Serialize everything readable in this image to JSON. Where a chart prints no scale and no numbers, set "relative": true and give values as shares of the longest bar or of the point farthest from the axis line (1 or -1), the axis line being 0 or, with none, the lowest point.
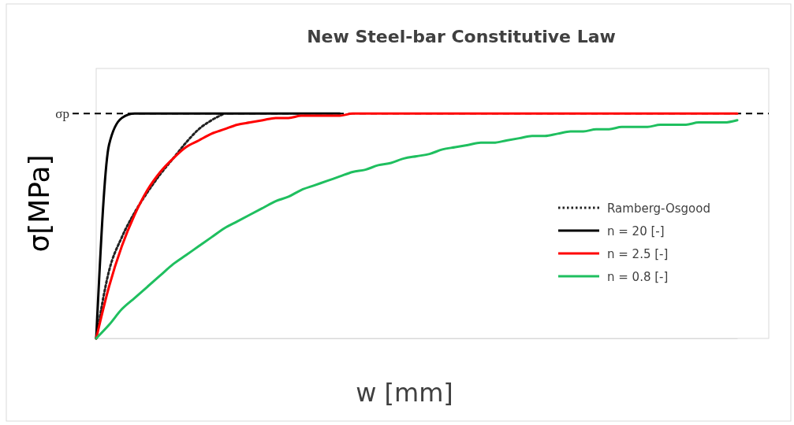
{
  "chart_data": {
    "type": "line",
    "title": "New Steel-bar Constitutive Law",
    "xlabel": "w [mm]",
    "ylabel": "σ[MPa]",
    "relative": true,
    "legend": "right",
    "marker": "none",
    "grid": false,
    "categories": [
      null,
      null,
      null,
      null,
      null,
      null,
      null,
      null,
      null,
      null,
      null,
      null,
      null,
      null,
      null,
      null,
      null,
      null,
      null,
      null,
      null,
      null,
      null,
      null,
      null,
      null,
      null,
      null,
      null,
      null,
      null,
      null,
      null,
      null,
      null,
      null,
      null,
      null,
      null,
      null,
      null,
      null,
      null,
      null,
      null,
      null,
      null,
      null,
      null,
      null,
      null
    ],
    "ref_lines": [
      {
        "axis": "y",
        "value": 1,
        "label": "σp",
        "color": "#000000",
        "line_style": "dashed"
      }
    ],
    "series": [
      {
        "name": "Ramberg-Osgood",
        "color": "#222222",
        "line_style": "dotted",
        "values": [
          0,
          0.3,
          0.45,
          0.56,
          0.65,
          0.73,
          0.8,
          0.87,
          0.93,
          0.97,
          1,
          null,
          null,
          null,
          null,
          null,
          null,
          null,
          null,
          null,
          null,
          null,
          null,
          null,
          null,
          null,
          null,
          null,
          null,
          null,
          null,
          null,
          null,
          null,
          null,
          null,
          null,
          null,
          null,
          null,
          null,
          null,
          null,
          null,
          null,
          null,
          null,
          null,
          null,
          null,
          null
        ]
      },
      {
        "name": "n = 20 [-]",
        "color": "#000000",
        "line_style": "solid",
        "values": [
          0,
          0.86,
          0.98,
          1,
          1,
          1,
          1,
          1,
          1,
          1,
          1,
          1,
          1,
          1,
          1,
          1,
          1,
          1,
          1,
          1,
          null,
          null,
          null,
          null,
          null,
          null,
          null,
          null,
          null,
          null,
          null,
          null,
          null,
          null,
          null,
          null,
          null,
          null,
          null,
          null,
          null,
          null,
          null,
          null,
          null,
          null,
          null,
          null,
          null,
          null,
          null
        ]
      },
      {
        "name": "n = 2.5 [-]",
        "color": "#ff0000",
        "line_style": "solid",
        "values": [
          0,
          0.23,
          0.41,
          0.55,
          0.66,
          0.74,
          0.8,
          0.85,
          0.88,
          0.91,
          0.93,
          0.95,
          0.96,
          0.97,
          0.98,
          0.98,
          0.99,
          0.99,
          0.99,
          0.99,
          1,
          1,
          1,
          1,
          1,
          1,
          1,
          1,
          1,
          1,
          1,
          1,
          1,
          1,
          1,
          1,
          1,
          1,
          1,
          1,
          1,
          1,
          1,
          1,
          1,
          1,
          1,
          1,
          1,
          1,
          1
        ]
      },
      {
        "name": "n = 0.8 [-]",
        "color": "#1fbf5f",
        "line_style": "solid",
        "values": [
          0,
          0.06,
          0.13,
          0.18,
          0.23,
          0.28,
          0.33,
          0.37,
          0.41,
          0.45,
          0.49,
          0.52,
          0.55,
          0.58,
          0.61,
          0.63,
          0.66,
          0.68,
          0.7,
          0.72,
          0.74,
          0.75,
          0.77,
          0.78,
          0.8,
          0.81,
          0.82,
          0.84,
          0.85,
          0.86,
          0.87,
          0.87,
          0.88,
          0.89,
          0.9,
          0.9,
          0.91,
          0.92,
          0.92,
          0.93,
          0.93,
          0.94,
          0.94,
          0.94,
          0.95,
          0.95,
          0.95,
          0.96,
          0.96,
          0.96,
          0.97
        ]
      }
    ]
  }
}
